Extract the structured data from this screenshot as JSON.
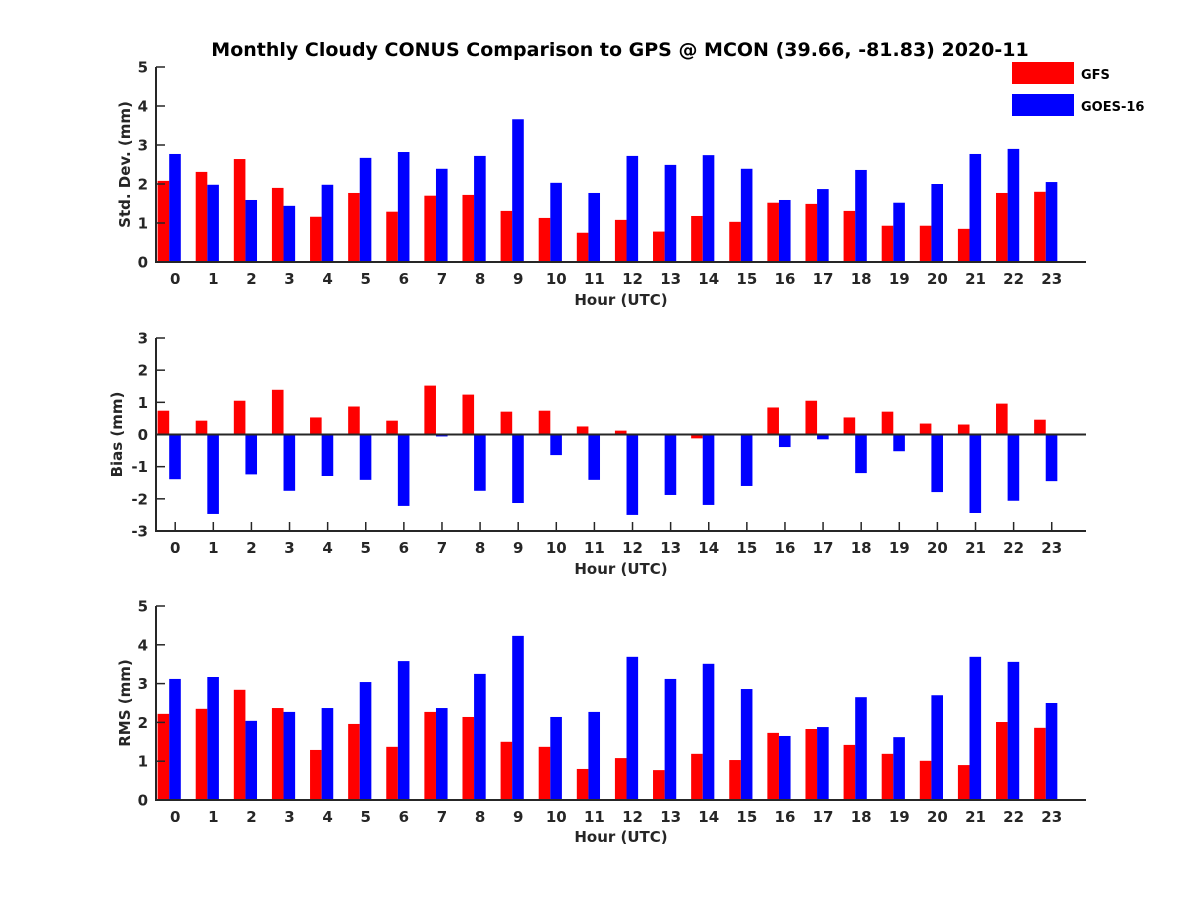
{
  "chart_data": {
    "type": "bar",
    "title": "Monthly Cloudy CONUS Comparison to GPS @ MCON (39.66, -81.83) 2020-11",
    "legend": {
      "placement": "top-right",
      "entries": [
        {
          "name": "GFS",
          "color": "#ff0000"
        },
        {
          "name": "GOES-16",
          "color": "#0000ff"
        }
      ]
    },
    "categories": [
      "0",
      "1",
      "2",
      "3",
      "4",
      "5",
      "6",
      "7",
      "8",
      "9",
      "10",
      "11",
      "12",
      "13",
      "14",
      "15",
      "16",
      "17",
      "18",
      "19",
      "20",
      "21",
      "22",
      "23"
    ],
    "panels": [
      {
        "id": "stddev",
        "xlabel": "Hour (UTC)",
        "ylabel": "Std. Dev. (mm)",
        "ylim": [
          0,
          5
        ],
        "yticks": [
          0,
          1,
          2,
          3,
          4,
          5
        ],
        "zero_line": false,
        "x_ticks_marks": false,
        "series": [
          {
            "name": "GFS",
            "values": [
              2.08,
              2.31,
              2.64,
              1.9,
              1.16,
              1.77,
              1.29,
              1.7,
              1.72,
              1.31,
              1.13,
              0.75,
              1.08,
              0.78,
              1.18,
              1.03,
              1.52,
              1.49,
              1.31,
              0.93,
              0.93,
              0.85,
              1.77,
              1.8
            ]
          },
          {
            "name": "GOES-16",
            "values": [
              2.77,
              1.98,
              1.59,
              1.44,
              1.98,
              2.67,
              2.82,
              2.39,
              2.72,
              3.66,
              2.03,
              1.77,
              2.72,
              2.49,
              2.74,
              2.39,
              1.59,
              1.87,
              2.36,
              1.52,
              2.0,
              2.77,
              2.9,
              2.05
            ]
          }
        ]
      },
      {
        "id": "bias",
        "xlabel": "Hour (UTC)",
        "ylabel": "Bias (mm)",
        "ylim": [
          -3,
          3
        ],
        "yticks": [
          -3,
          -2,
          -1,
          0,
          1,
          2,
          3
        ],
        "zero_line": true,
        "x_ticks_marks": true,
        "series": [
          {
            "name": "GFS",
            "values": [
              0.74,
              0.43,
              1.05,
              1.39,
              0.53,
              0.87,
              0.43,
              1.52,
              1.24,
              0.71,
              0.74,
              0.25,
              0.12,
              0.0,
              -0.12,
              0.02,
              0.84,
              1.05,
              0.53,
              0.71,
              0.34,
              0.31,
              0.96,
              0.46
            ]
          },
          {
            "name": "GOES-16",
            "values": [
              -1.39,
              -2.47,
              -1.24,
              -1.75,
              -1.29,
              -1.41,
              -2.22,
              -0.06,
              -1.75,
              -2.13,
              -0.64,
              -1.41,
              -2.5,
              -1.88,
              -2.19,
              -1.6,
              -0.39,
              -0.15,
              -1.2,
              -0.52,
              -1.79,
              -2.44,
              -2.06,
              -1.45
            ]
          }
        ]
      },
      {
        "id": "rms",
        "xlabel": "Hour (UTC)",
        "ylabel": "RMS (mm)",
        "ylim": [
          0,
          5
        ],
        "yticks": [
          0,
          1,
          2,
          3,
          4,
          5
        ],
        "zero_line": false,
        "x_ticks_marks": false,
        "series": [
          {
            "name": "GFS",
            "values": [
              2.22,
              2.35,
              2.84,
              2.37,
              1.29,
              1.96,
              1.37,
              2.27,
              2.14,
              1.5,
              1.37,
              0.8,
              1.08,
              0.77,
              1.19,
              1.03,
              1.73,
              1.83,
              1.42,
              1.19,
              1.01,
              0.9,
              2.01,
              1.86
            ]
          },
          {
            "name": "GOES-16",
            "values": [
              3.12,
              3.17,
              2.04,
              2.27,
              2.37,
              3.04,
              3.58,
              2.37,
              3.25,
              4.23,
              2.14,
              2.27,
              3.69,
              3.12,
              3.51,
              2.86,
              1.65,
              1.88,
              2.65,
              1.62,
              2.7,
              3.69,
              3.56,
              2.5
            ]
          }
        ]
      }
    ]
  }
}
